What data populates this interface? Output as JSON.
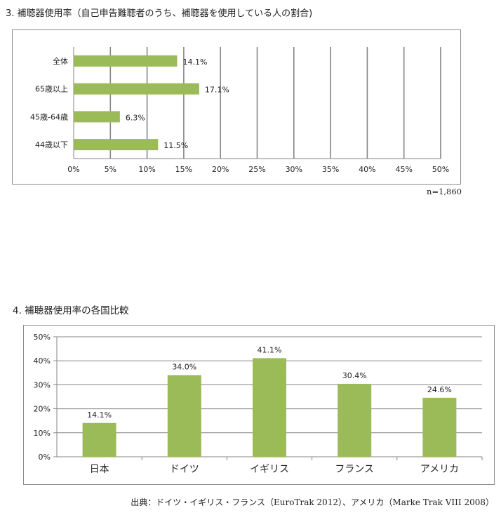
{
  "section3": {
    "heading": "3. 補聴器使用率（自己申告難聴者のうち、補聴器を使用している人の割合)",
    "note": "n=1,860"
  },
  "section4": {
    "heading": "4. 補聴器使用率の各国比較",
    "source": "出典：ドイツ・イギリス・フランス（EuroTrak 2012）、アメリカ（Marke Trak VIII 2008）"
  },
  "colors": {
    "bar": "#9bbb59",
    "grid": "#868686",
    "axis": "#868686"
  },
  "chart_data": [
    {
      "type": "bar",
      "orientation": "horizontal",
      "categories": [
        "全体",
        "65歳以上",
        "45歳-64歳",
        "44歳以下"
      ],
      "values": [
        14.1,
        17.1,
        6.3,
        11.5
      ],
      "value_labels": [
        "14.1%",
        "17.1%",
        "6.3%",
        "11.5%"
      ],
      "xlim": [
        0,
        50
      ],
      "ticks": [
        "0%",
        "5%",
        "10%",
        "15%",
        "20%",
        "25%",
        "30%",
        "35%",
        "40%",
        "45%",
        "50%"
      ],
      "grid": true
    },
    {
      "type": "bar",
      "orientation": "vertical",
      "categories": [
        "日本",
        "ドイツ",
        "イギリス",
        "フランス",
        "アメリカ"
      ],
      "values": [
        14.1,
        34.0,
        41.1,
        30.4,
        24.6
      ],
      "value_labels": [
        "14.1%",
        "34.0%",
        "41.1%",
        "30.4%",
        "24.6%"
      ],
      "ylim": [
        0,
        50
      ],
      "ticks": [
        "0%",
        "10%",
        "20%",
        "30%",
        "40%",
        "50%"
      ],
      "grid": true
    }
  ]
}
